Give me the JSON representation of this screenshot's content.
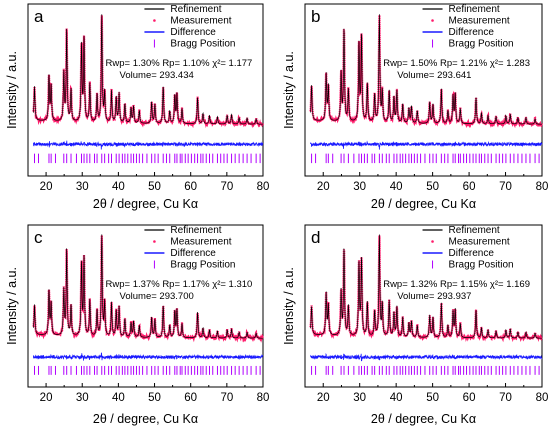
{
  "colors": {
    "refinement": "#000000",
    "measurement": "#ff1a6a",
    "difference": "#1a1aff",
    "bragg": "#b000ff"
  },
  "legend_labels": [
    "Refinement",
    "Measurement",
    "Difference",
    "Bragg Position"
  ],
  "chart_data": [
    {
      "type": "line",
      "panel": "a",
      "xlabel": "2θ / degree, Cu Kα",
      "ylabel": "Intensity / a.u.",
      "xlim": [
        15,
        80
      ],
      "xticks": [
        20,
        30,
        40,
        50,
        60,
        70,
        80
      ],
      "yticks_shown": false,
      "series": [
        {
          "name": "Refinement"
        },
        {
          "name": "Measurement"
        },
        {
          "name": "Difference"
        },
        {
          "name": "Bragg Position"
        }
      ],
      "stats": {
        "line1": "Rwp= 1.30%  Rp= 1.10% χ²= 1.177",
        "line2": "Volume= 293.434"
      },
      "peaks": [
        [
          16.8,
          0.32
        ],
        [
          20.8,
          0.42
        ],
        [
          21.4,
          0.33
        ],
        [
          24.9,
          0.45
        ],
        [
          25.7,
          0.86
        ],
        [
          26.9,
          0.3
        ],
        [
          29.8,
          0.72
        ],
        [
          30.5,
          0.78
        ],
        [
          32.1,
          0.36
        ],
        [
          34.1,
          0.26
        ],
        [
          35.4,
          1.0
        ],
        [
          36.2,
          0.28
        ],
        [
          38.1,
          0.3
        ],
        [
          39.4,
          0.24
        ],
        [
          40.2,
          0.28
        ],
        [
          41.8,
          0.18
        ],
        [
          43.5,
          0.14
        ],
        [
          44.2,
          0.16
        ],
        [
          45.8,
          0.12
        ],
        [
          49.2,
          0.2
        ],
        [
          50.1,
          0.18
        ],
        [
          52.4,
          0.35
        ],
        [
          54.2,
          0.12
        ],
        [
          55.6,
          0.26
        ],
        [
          56.2,
          0.28
        ],
        [
          57.6,
          0.14
        ],
        [
          61.9,
          0.25
        ],
        [
          63.4,
          0.1
        ],
        [
          65.2,
          0.08
        ],
        [
          67.4,
          0.07
        ],
        [
          70.1,
          0.08
        ],
        [
          71.3,
          0.09
        ],
        [
          73.4,
          0.06
        ],
        [
          75.6,
          0.06
        ],
        [
          78.1,
          0.05
        ]
      ],
      "bragg_positions": [
        16.8,
        17.9,
        20.8,
        21.4,
        22.6,
        24.9,
        25.7,
        26.9,
        28.4,
        29.8,
        30.5,
        31.3,
        32.1,
        33.4,
        34.1,
        35.4,
        36.2,
        37.3,
        38.1,
        39.4,
        40.2,
        41.1,
        41.8,
        42.6,
        43.5,
        44.2,
        45.0,
        45.8,
        46.7,
        47.9,
        49.2,
        50.1,
        51.0,
        52.4,
        53.3,
        54.2,
        55.6,
        56.2,
        57.1,
        57.6,
        58.5,
        59.3,
        60.2,
        61.1,
        61.9,
        62.8,
        63.4,
        64.3,
        65.2,
        66.1,
        67.4,
        68.3,
        69.2,
        70.1,
        71.3,
        72.3,
        73.4,
        74.5,
        75.6,
        76.7,
        78.1,
        79.2
      ]
    },
    {
      "type": "line",
      "panel": "b",
      "xlabel": "2θ / degree, Cu Kα",
      "ylabel": "Intensity / a.u.",
      "xlim": [
        15,
        80
      ],
      "xticks": [
        20,
        30,
        40,
        50,
        60,
        70,
        80
      ],
      "yticks_shown": false,
      "series": [
        {
          "name": "Refinement"
        },
        {
          "name": "Measurement"
        },
        {
          "name": "Difference"
        },
        {
          "name": "Bragg Position"
        }
      ],
      "stats": {
        "line1": "Rwp= 1.50%  Rp= 1.21% χ²= 1.283",
        "line2": "Volume= 293.641"
      },
      "peaks": [
        [
          16.8,
          0.33
        ],
        [
          20.8,
          0.44
        ],
        [
          21.4,
          0.33
        ],
        [
          24.9,
          0.45
        ],
        [
          25.7,
          0.86
        ],
        [
          26.9,
          0.3
        ],
        [
          29.8,
          0.73
        ],
        [
          30.5,
          0.8
        ],
        [
          32.1,
          0.36
        ],
        [
          34.1,
          0.26
        ],
        [
          35.4,
          1.0
        ],
        [
          36.2,
          0.29
        ],
        [
          38.1,
          0.3
        ],
        [
          39.4,
          0.24
        ],
        [
          40.2,
          0.3
        ],
        [
          41.8,
          0.18
        ],
        [
          43.5,
          0.14
        ],
        [
          44.2,
          0.16
        ],
        [
          45.8,
          0.12
        ],
        [
          49.2,
          0.2
        ],
        [
          50.1,
          0.18
        ],
        [
          52.4,
          0.33
        ],
        [
          54.2,
          0.12
        ],
        [
          55.6,
          0.26
        ],
        [
          56.2,
          0.28
        ],
        [
          57.6,
          0.14
        ],
        [
          61.9,
          0.25
        ],
        [
          63.4,
          0.1
        ],
        [
          65.2,
          0.08
        ],
        [
          67.4,
          0.07
        ],
        [
          70.1,
          0.08
        ],
        [
          71.3,
          0.09
        ],
        [
          73.4,
          0.06
        ],
        [
          75.6,
          0.06
        ],
        [
          78.1,
          0.05
        ]
      ],
      "bragg_positions": [
        16.8,
        17.9,
        20.8,
        21.4,
        22.6,
        24.9,
        25.7,
        26.9,
        28.4,
        29.8,
        30.5,
        31.3,
        32.1,
        33.4,
        34.1,
        35.4,
        36.2,
        37.3,
        38.1,
        39.4,
        40.2,
        41.1,
        41.8,
        42.6,
        43.5,
        44.2,
        45.0,
        45.8,
        46.7,
        47.9,
        49.2,
        50.1,
        51.0,
        52.4,
        53.3,
        54.2,
        55.6,
        56.2,
        57.1,
        57.6,
        58.5,
        59.3,
        60.2,
        61.1,
        61.9,
        62.8,
        63.4,
        64.3,
        65.2,
        66.1,
        67.4,
        68.3,
        69.2,
        70.1,
        71.3,
        72.3,
        73.4,
        74.5,
        75.6,
        76.7,
        78.1,
        79.2
      ]
    },
    {
      "type": "line",
      "panel": "c",
      "xlabel": "2θ / degree, Cu Kα",
      "ylabel": "Intensity / a.u.",
      "xlim": [
        15,
        80
      ],
      "xticks": [
        20,
        30,
        40,
        50,
        60,
        70,
        80
      ],
      "yticks_shown": false,
      "series": [
        {
          "name": "Refinement"
        },
        {
          "name": "Measurement"
        },
        {
          "name": "Difference"
        },
        {
          "name": "Bragg Position"
        }
      ],
      "stats": {
        "line1": "Rwp= 1.37%  Rp= 1.17% χ²= 1.310",
        "line2": "Volume= 293.700"
      },
      "peaks": [
        [
          16.8,
          0.3
        ],
        [
          20.8,
          0.44
        ],
        [
          21.4,
          0.32
        ],
        [
          24.9,
          0.45
        ],
        [
          25.7,
          0.86
        ],
        [
          26.9,
          0.3
        ],
        [
          29.8,
          0.72
        ],
        [
          30.5,
          0.78
        ],
        [
          32.1,
          0.36
        ],
        [
          34.1,
          0.26
        ],
        [
          35.4,
          1.0
        ],
        [
          36.2,
          0.34
        ],
        [
          38.1,
          0.34
        ],
        [
          39.4,
          0.26
        ],
        [
          40.2,
          0.3
        ],
        [
          41.8,
          0.18
        ],
        [
          43.5,
          0.14
        ],
        [
          44.2,
          0.16
        ],
        [
          45.8,
          0.12
        ],
        [
          49.2,
          0.2
        ],
        [
          50.1,
          0.18
        ],
        [
          52.4,
          0.32
        ],
        [
          54.2,
          0.12
        ],
        [
          55.6,
          0.26
        ],
        [
          56.2,
          0.28
        ],
        [
          57.6,
          0.14
        ],
        [
          61.9,
          0.26
        ],
        [
          63.4,
          0.1
        ],
        [
          65.2,
          0.08
        ],
        [
          67.4,
          0.07
        ],
        [
          70.1,
          0.08
        ],
        [
          71.3,
          0.09
        ],
        [
          73.4,
          0.06
        ],
        [
          75.6,
          0.06
        ],
        [
          78.1,
          0.05
        ]
      ],
      "bragg_positions": [
        16.8,
        17.9,
        20.8,
        21.4,
        22.6,
        24.9,
        25.7,
        26.9,
        28.4,
        29.8,
        30.5,
        31.3,
        32.1,
        33.4,
        34.1,
        35.4,
        36.2,
        37.3,
        38.1,
        39.4,
        40.2,
        41.1,
        41.8,
        42.6,
        43.5,
        44.2,
        45.0,
        45.8,
        46.7,
        47.9,
        49.2,
        50.1,
        51.0,
        52.4,
        53.3,
        54.2,
        55.6,
        56.2,
        57.1,
        57.6,
        58.5,
        59.3,
        60.2,
        61.1,
        61.9,
        62.8,
        63.4,
        64.3,
        65.2,
        66.1,
        67.4,
        68.3,
        69.2,
        70.1,
        71.3,
        72.3,
        73.4,
        74.5,
        75.6,
        76.7,
        78.1,
        79.2
      ]
    },
    {
      "type": "line",
      "panel": "d",
      "xlabel": "2θ / degree, Cu Kα",
      "ylabel": "Intensity / a.u.",
      "xlim": [
        15,
        80
      ],
      "xticks": [
        20,
        30,
        40,
        50,
        60,
        70,
        80
      ],
      "yticks_shown": false,
      "series": [
        {
          "name": "Refinement"
        },
        {
          "name": "Measurement"
        },
        {
          "name": "Difference"
        },
        {
          "name": "Bragg Position"
        }
      ],
      "stats": {
        "line1": "Rwp= 1.32%  Rp= 1.15% χ²= 1.169",
        "line2": "Volume= 293.937"
      },
      "peaks": [
        [
          16.8,
          0.28
        ],
        [
          20.8,
          0.42
        ],
        [
          21.4,
          0.3
        ],
        [
          24.9,
          0.44
        ],
        [
          25.7,
          0.86
        ],
        [
          26.9,
          0.3
        ],
        [
          29.8,
          0.72
        ],
        [
          30.5,
          0.76
        ],
        [
          32.1,
          0.34
        ],
        [
          34.1,
          0.25
        ],
        [
          35.4,
          1.0
        ],
        [
          36.2,
          0.32
        ],
        [
          38.1,
          0.36
        ],
        [
          39.4,
          0.24
        ],
        [
          40.2,
          0.3
        ],
        [
          41.8,
          0.2
        ],
        [
          43.5,
          0.14
        ],
        [
          44.2,
          0.16
        ],
        [
          45.8,
          0.12
        ],
        [
          49.2,
          0.22
        ],
        [
          50.1,
          0.2
        ],
        [
          52.4,
          0.35
        ],
        [
          54.2,
          0.12
        ],
        [
          55.6,
          0.26
        ],
        [
          56.2,
          0.28
        ],
        [
          57.6,
          0.14
        ],
        [
          61.9,
          0.28
        ],
        [
          63.4,
          0.1
        ],
        [
          65.2,
          0.08
        ],
        [
          67.4,
          0.07
        ],
        [
          70.1,
          0.08
        ],
        [
          71.3,
          0.09
        ],
        [
          73.4,
          0.06
        ],
        [
          75.6,
          0.06
        ],
        [
          78.1,
          0.05
        ]
      ],
      "bragg_positions": [
        16.8,
        17.9,
        20.8,
        21.4,
        22.6,
        24.9,
        25.7,
        26.9,
        28.4,
        29.8,
        30.5,
        31.3,
        32.1,
        33.4,
        34.1,
        35.4,
        36.2,
        37.3,
        38.1,
        39.4,
        40.2,
        41.1,
        41.8,
        42.6,
        43.5,
        44.2,
        45.0,
        45.8,
        46.7,
        47.9,
        49.2,
        50.1,
        51.0,
        52.4,
        53.3,
        54.2,
        55.6,
        56.2,
        57.1,
        57.6,
        58.5,
        59.3,
        60.2,
        61.1,
        61.9,
        62.8,
        63.4,
        64.3,
        65.2,
        66.1,
        67.4,
        68.3,
        69.2,
        70.1,
        71.3,
        72.3,
        73.4,
        74.5,
        75.6,
        76.7,
        78.1,
        79.2
      ]
    }
  ]
}
